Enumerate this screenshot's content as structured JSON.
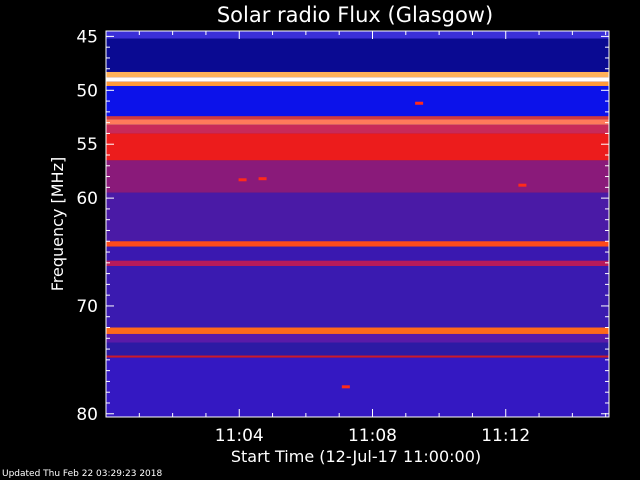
{
  "chart_data": {
    "type": "heatmap",
    "title": "Solar radio Flux (Glasgow)",
    "xlabel": "Start Time (12-Jul-17 11:00:00)",
    "ylabel": "Frequency [MHz]",
    "x_unit": "minutes after 11:00:00",
    "xlim": [
      0,
      15.1
    ],
    "ylim": [
      44.5,
      80.3
    ],
    "y_inverted": true,
    "x_ticks": [
      {
        "value": 4,
        "label": "11:04"
      },
      {
        "value": 8,
        "label": "11:08"
      },
      {
        "value": 12,
        "label": "11:12"
      }
    ],
    "y_ticks": [
      {
        "value": 45,
        "label": "45"
      },
      {
        "value": 50,
        "label": "50"
      },
      {
        "value": 55,
        "label": "55"
      },
      {
        "value": 60,
        "label": "60"
      },
      {
        "value": 70,
        "label": "70"
      },
      {
        "value": 80,
        "label": "80"
      }
    ],
    "background_color": "#2a1a9c",
    "bands": [
      {
        "from": 44.5,
        "to": 45.2,
        "color": "#3a2fd8"
      },
      {
        "from": 45.2,
        "to": 48.3,
        "color": "#0a0a92"
      },
      {
        "from": 48.3,
        "to": 48.8,
        "color": "#ffb25a"
      },
      {
        "from": 48.8,
        "to": 49.2,
        "color": "#ffffff"
      },
      {
        "from": 49.2,
        "to": 49.6,
        "color": "#ff9a3a"
      },
      {
        "from": 49.6,
        "to": 52.4,
        "color": "#0c12ea"
      },
      {
        "from": 52.4,
        "to": 52.7,
        "color": "#d23a40"
      },
      {
        "from": 52.7,
        "to": 53.2,
        "color": "#ff7a5a"
      },
      {
        "from": 53.2,
        "to": 54.0,
        "color": "#c82a5a"
      },
      {
        "from": 54.0,
        "to": 56.5,
        "color": "#ec1c1c"
      },
      {
        "from": 56.5,
        "to": 59.5,
        "color": "#8a1a7a"
      },
      {
        "from": 59.5,
        "to": 64.0,
        "color": "#4a1aa6"
      },
      {
        "from": 64.0,
        "to": 64.5,
        "color": "#ff4a1a"
      },
      {
        "from": 64.5,
        "to": 65.8,
        "color": "#3a18b0"
      },
      {
        "from": 65.8,
        "to": 66.3,
        "color": "#b81a5a"
      },
      {
        "from": 66.3,
        "to": 72.0,
        "color": "#3a1ab0"
      },
      {
        "from": 72.0,
        "to": 72.6,
        "color": "#ff6a1a"
      },
      {
        "from": 72.6,
        "to": 73.4,
        "color": "#5a1aa8"
      },
      {
        "from": 73.4,
        "to": 74.6,
        "color": "#2c1aa4"
      },
      {
        "from": 74.6,
        "to": 74.8,
        "color": "#cc1a2a"
      },
      {
        "from": 74.8,
        "to": 80.3,
        "color": "#3418c2"
      }
    ],
    "bursts": [
      {
        "time": 4.1,
        "freq": 58.3
      },
      {
        "time": 4.7,
        "freq": 58.2
      },
      {
        "time": 9.4,
        "freq": 51.2
      },
      {
        "time": 12.5,
        "freq": 58.8
      },
      {
        "time": 7.2,
        "freq": 77.5
      }
    ]
  },
  "footer": {
    "updated_text": "Updated Thu Feb 22 03:29:23 2018"
  }
}
